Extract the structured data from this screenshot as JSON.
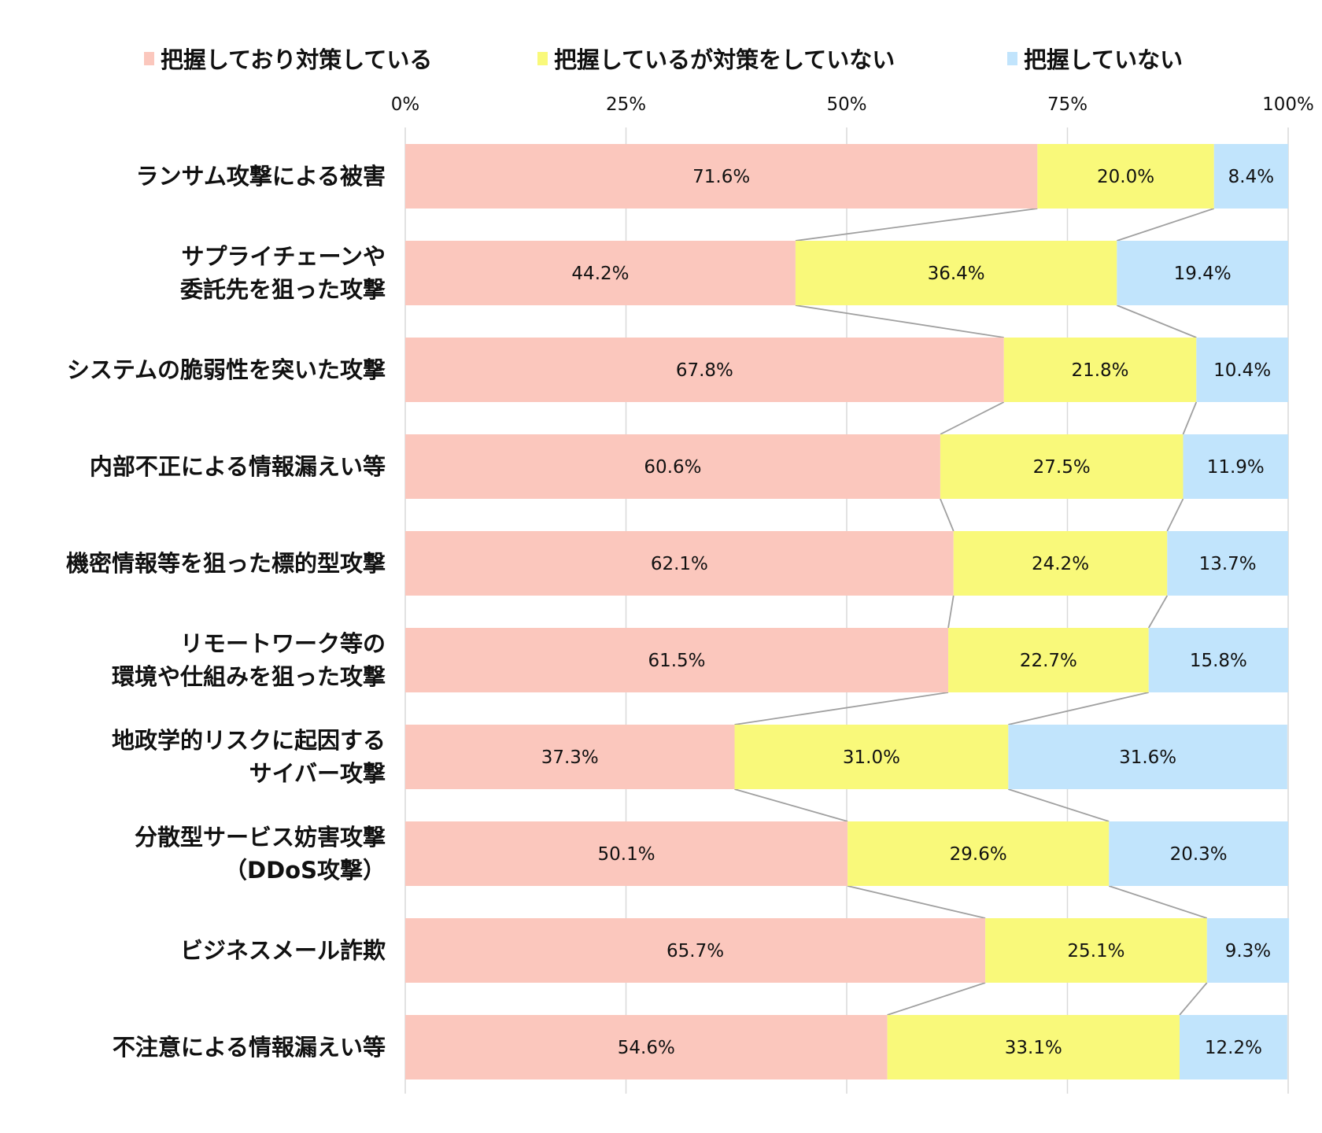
{
  "chart_data": {
    "type": "bar",
    "orientation": "horizontal",
    "stacked": "100%",
    "title": "",
    "xlabel": "",
    "ylabel": "",
    "xlim": [
      0,
      100
    ],
    "xticks": [
      "0%",
      "25%",
      "50%",
      "75%",
      "100%"
    ],
    "grid": true,
    "legend_position": "top",
    "categories": [
      [
        "ランサム攻撃による被害"
      ],
      [
        "サプライチェーンや",
        "委託先を狙った攻撃"
      ],
      [
        "システムの脆弱性を突いた攻撃"
      ],
      [
        "内部不正による情報漏えい等"
      ],
      [
        "機密情報等を狙った標的型攻撃"
      ],
      [
        "リモートワーク等の",
        "環境や仕組みを狙った攻撃"
      ],
      [
        "地政学的リスクに起因する",
        "サイバー攻撃"
      ],
      [
        "分散型サービス妨害攻撃",
        "（DDoS攻撃）"
      ],
      [
        "ビジネスメール詐欺"
      ],
      [
        "不注意による情報漏えい等"
      ]
    ],
    "series": [
      {
        "name": "把握しており対策している",
        "color": "#fbc7bd",
        "values": [
          71.6,
          44.2,
          67.8,
          60.6,
          62.1,
          61.5,
          37.3,
          50.1,
          65.7,
          54.6
        ]
      },
      {
        "name": "把握しているが対策をしていない",
        "color": "#f9f97a",
        "values": [
          20.0,
          36.4,
          21.8,
          27.5,
          24.2,
          22.7,
          31.0,
          29.6,
          25.1,
          33.1
        ]
      },
      {
        "name": "把握していない",
        "color": "#c1e4fc",
        "values": [
          8.4,
          19.4,
          10.4,
          11.9,
          13.7,
          15.8,
          31.6,
          20.3,
          9.3,
          12.2
        ]
      }
    ],
    "value_label_suffix": "%",
    "series_lines": true
  }
}
